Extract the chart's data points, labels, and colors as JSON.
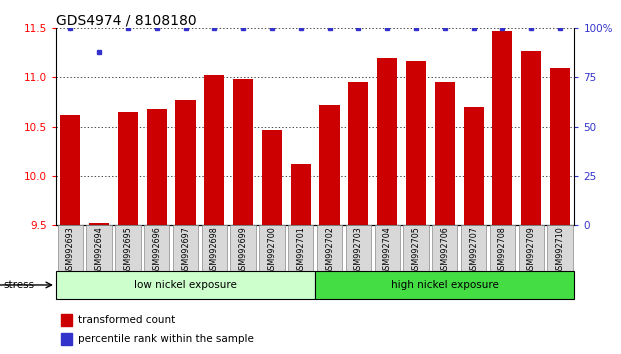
{
  "title": "GDS4974 / 8108180",
  "categories": [
    "GSM992693",
    "GSM992694",
    "GSM992695",
    "GSM992696",
    "GSM992697",
    "GSM992698",
    "GSM992699",
    "GSM992700",
    "GSM992701",
    "GSM992702",
    "GSM992703",
    "GSM992704",
    "GSM992705",
    "GSM992706",
    "GSM992707",
    "GSM992708",
    "GSM992709",
    "GSM992710"
  ],
  "bar_values": [
    10.62,
    9.52,
    10.65,
    10.68,
    10.77,
    11.02,
    10.98,
    10.47,
    10.12,
    10.72,
    10.95,
    11.2,
    11.17,
    10.95,
    10.7,
    11.47,
    11.27,
    11.1
  ],
  "percentile_pct": [
    100,
    88,
    100,
    100,
    100,
    100,
    100,
    100,
    100,
    100,
    100,
    100,
    100,
    100,
    100,
    100,
    100,
    100
  ],
  "bar_color": "#cc0000",
  "dot_color": "#3333cc",
  "ylim_left": [
    9.5,
    11.5
  ],
  "ylim_right": [
    0,
    100
  ],
  "yticks_left": [
    9.5,
    10.0,
    10.5,
    11.0,
    11.5
  ],
  "yticks_right": [
    0,
    25,
    50,
    75,
    100
  ],
  "ytick_labels_right": [
    "0",
    "25",
    "50",
    "75",
    "100%"
  ],
  "grid_values": [
    10.0,
    10.5,
    11.0,
    11.5
  ],
  "group1_count": 9,
  "group1_label": "low nickel exposure",
  "group2_label": "high nickel exposure",
  "group1_color": "#ccffcc",
  "group2_color": "#44dd44",
  "stress_label": "stress",
  "legend_bar_label": "transformed count",
  "legend_dot_label": "percentile rank within the sample",
  "background_color": "#ffffff",
  "title_fontsize": 10,
  "tick_fontsize": 7.5,
  "bar_width": 0.7,
  "ybase": 9.5
}
